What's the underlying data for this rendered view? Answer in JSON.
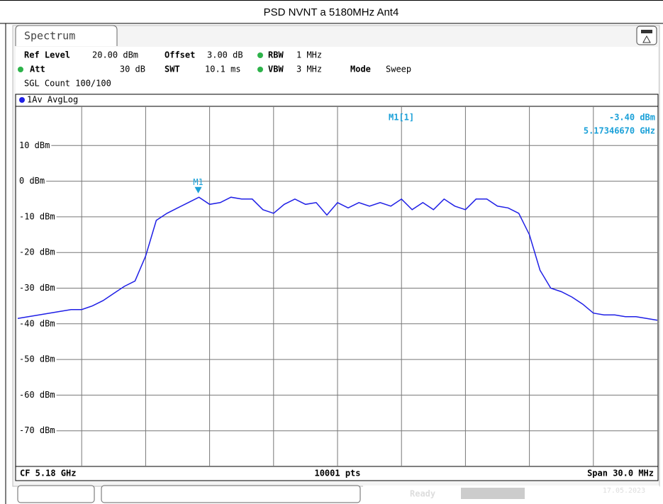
{
  "title": "PSD NVNT a 5180MHz Ant4",
  "tab": "Spectrum",
  "header": {
    "ref_level_label": "Ref Level",
    "ref_level": "20.00 dBm",
    "offset_label": "Offset",
    "offset": "3.00 dB",
    "rbw_label": "RBW",
    "rbw": "1 MHz",
    "att_label": "Att",
    "att": "30 dB",
    "swt_label": "SWT",
    "swt": "10.1 ms",
    "vbw_label": "VBW",
    "vbw": "3 MHz",
    "mode_label": "Mode",
    "mode": "Sweep",
    "count": "SGL Count 100/100"
  },
  "footer": {
    "center": "CF 5.18 GHz",
    "points": "10001 pts",
    "span": "Span 30.0 MHz"
  },
  "status": {
    "state": "Ready",
    "date": "17.05.2023"
  },
  "chart_data": {
    "type": "line",
    "trace_label": "1Av AvgLog",
    "xlim": [
      5.165,
      5.195
    ],
    "ylim": [
      -80,
      20
    ],
    "yticks": [
      {
        "value": 10,
        "label": "10 dBm"
      },
      {
        "value": 0,
        "label": "0 dBm"
      },
      {
        "value": -10,
        "label": "-10 dBm"
      },
      {
        "value": -20,
        "label": "-20 dBm"
      },
      {
        "value": -30,
        "label": "-30 dBm"
      },
      {
        "value": -40,
        "label": "-40 dBm"
      },
      {
        "value": -50,
        "label": "-50 dBm"
      },
      {
        "value": -60,
        "label": "-60 dBm"
      },
      {
        "value": -70,
        "label": "-70 dBm"
      }
    ],
    "grid": true,
    "x": [
      5.165,
      5.1655,
      5.166,
      5.1665,
      5.167,
      5.1675,
      5.168,
      5.1685,
      5.169,
      5.1695,
      5.17,
      5.1705,
      5.171,
      5.1715,
      5.172,
      5.1725,
      5.173,
      5.1735,
      5.174,
      5.1745,
      5.175,
      5.1755,
      5.176,
      5.1765,
      5.177,
      5.1775,
      5.178,
      5.1785,
      5.179,
      5.1795,
      5.18,
      5.1805,
      5.181,
      5.1815,
      5.182,
      5.1825,
      5.183,
      5.1835,
      5.184,
      5.1845,
      5.185,
      5.1855,
      5.186,
      5.1865,
      5.187,
      5.1875,
      5.188,
      5.1885,
      5.189,
      5.1895,
      5.19,
      5.1905,
      5.191,
      5.1915,
      5.192,
      5.1925,
      5.193,
      5.1935,
      5.194,
      5.1945,
      5.195
    ],
    "series": [
      {
        "color": "#1f1fe6",
        "values": [
          -38.5,
          -38,
          -37.5,
          -37,
          -36.5,
          -36,
          -36,
          -35,
          -33.5,
          -31.5,
          -29.5,
          -28,
          -21,
          -11,
          -9,
          -7.5,
          -6,
          -4.5,
          -6.5,
          -6,
          -4.5,
          -5,
          -5,
          -8,
          -9,
          -6.5,
          -5,
          -6.5,
          -6,
          -9.5,
          -6,
          -7.5,
          -6,
          -7,
          -6,
          -7,
          -5,
          -8,
          -6,
          -8,
          -5,
          -7,
          -8,
          -5,
          -5,
          -7,
          -7.5,
          -9,
          -15,
          -25,
          -30,
          -31,
          -32.5,
          -34.5,
          -37,
          -37.5,
          -37.5,
          -38,
          -38,
          -38.5,
          -39
        ]
      }
    ],
    "marker": {
      "label": "M1",
      "readout_label": "M1[1]",
      "x": 5.1734667,
      "value": -3.4,
      "value_label": "-3.40 dBm",
      "x_label": "5.17346670 GHz",
      "color": "#1aa0d8"
    }
  }
}
